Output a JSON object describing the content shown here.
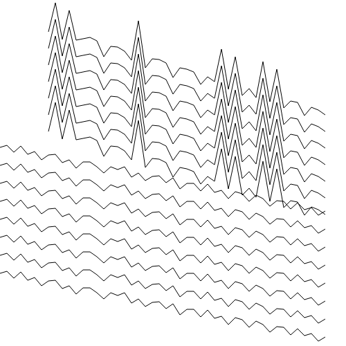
{
  "chart_data": {
    "type": "line",
    "color": "#000000",
    "marker": "none",
    "line_style": "solid",
    "grid": false,
    "tick_labels": false,
    "xlim": [
      0,
      500
    ],
    "ylim": [
      0,
      500
    ],
    "x": [
      0,
      10,
      20,
      30,
      40,
      50,
      60,
      70,
      80,
      90,
      100,
      110,
      120,
      130,
      140,
      150,
      160,
      170,
      180,
      190,
      200,
      210,
      220,
      230,
      240,
      250,
      260,
      270,
      280,
      290,
      300,
      310,
      320,
      330,
      340,
      350,
      360,
      370,
      380,
      390,
      400,
      410,
      420,
      430,
      440,
      450,
      460,
      470
    ],
    "series": [
      {
        "values": [
          null,
          null,
          null,
          null,
          null,
          null,
          null,
          454,
          496,
          443,
          485,
          442,
          444,
          446,
          441,
          418,
          433,
          432,
          426,
          413,
          470,
          402,
          415,
          414,
          409,
          388,
          402,
          400,
          396,
          378,
          389,
          382,
          429,
          371,
          418,
          362,
          372,
          359,
          411,
          353,
          400,
          344,
          354,
          352,
          333,
          345,
          341,
          334
        ]
      },
      {
        "values": [
          null,
          null,
          null,
          null,
          null,
          null,
          null,
          430,
          472,
          419,
          461,
          418,
          420,
          422,
          417,
          394,
          409,
          408,
          402,
          389,
          446,
          378,
          391,
          390,
          385,
          364,
          378,
          376,
          372,
          354,
          365,
          358,
          405,
          347,
          394,
          338,
          348,
          335,
          387,
          329,
          376,
          320,
          330,
          328,
          309,
          321,
          317,
          310
        ]
      },
      {
        "values": [
          null,
          null,
          null,
          null,
          null,
          null,
          null,
          406,
          448,
          395,
          437,
          394,
          396,
          398,
          393,
          370,
          385,
          384,
          378,
          365,
          422,
          354,
          367,
          366,
          361,
          340,
          354,
          352,
          348,
          330,
          341,
          334,
          381,
          323,
          370,
          314,
          324,
          311,
          363,
          305,
          352,
          296,
          306,
          304,
          285,
          297,
          293,
          286
        ]
      },
      {
        "values": [
          null,
          null,
          null,
          null,
          null,
          null,
          null,
          382,
          424,
          371,
          413,
          370,
          372,
          374,
          369,
          346,
          361,
          360,
          354,
          341,
          398,
          330,
          343,
          342,
          337,
          316,
          330,
          328,
          324,
          306,
          317,
          310,
          357,
          299,
          346,
          290,
          300,
          287,
          339,
          281,
          328,
          272,
          282,
          280,
          261,
          273,
          269,
          262
        ]
      },
      {
        "values": [
          null,
          null,
          null,
          null,
          null,
          null,
          null,
          358,
          400,
          347,
          389,
          346,
          348,
          350,
          345,
          322,
          337,
          336,
          330,
          317,
          374,
          306,
          319,
          318,
          313,
          292,
          306,
          304,
          300,
          282,
          293,
          286,
          333,
          275,
          322,
          266,
          276,
          263,
          315,
          257,
          304,
          248,
          258,
          256,
          237,
          249,
          245,
          238
        ]
      },
      {
        "values": [
          null,
          null,
          null,
          null,
          null,
          null,
          null,
          334,
          376,
          323,
          365,
          322,
          324,
          326,
          321,
          298,
          313,
          312,
          306,
          293,
          350,
          282,
          295,
          294,
          289,
          268,
          282,
          280,
          276,
          258,
          269,
          262,
          309,
          251,
          298,
          242,
          252,
          239,
          291,
          233,
          280,
          224,
          234,
          232,
          213,
          225,
          221,
          214
        ]
      },
      {
        "values": [
          null,
          null,
          null,
          null,
          null,
          null,
          null,
          310,
          352,
          299,
          341,
          298,
          300,
          302,
          297,
          274,
          289,
          288,
          282,
          269,
          326,
          258,
          271,
          270,
          265,
          244,
          258,
          256,
          252,
          234,
          245,
          238,
          285,
          227,
          274,
          218,
          228,
          215,
          267,
          209,
          256,
          200,
          210,
          208,
          189,
          201,
          197,
          190
        ]
      },
      {
        "values": [
          287,
          290,
          280,
          289,
          277,
          281,
          269,
          276,
          277,
          265,
          269,
          257,
          266,
          266,
          259,
          250,
          259,
          255,
          259,
          244,
          250,
          239,
          245,
          246,
          236,
          243,
          227,
          235,
          235,
          224,
          234,
          222,
          225,
          213,
          223,
          220,
          209,
          218,
          213,
          202,
          210,
          209,
          198,
          207,
          197,
          200,
          189,
          195
        ]
      },
      {
        "values": [
          261,
          264,
          254,
          263,
          251,
          255,
          243,
          250,
          251,
          239,
          243,
          231,
          240,
          240,
          233,
          224,
          233,
          229,
          233,
          218,
          224,
          213,
          219,
          220,
          210,
          217,
          201,
          209,
          209,
          198,
          208,
          196,
          199,
          187,
          197,
          194,
          183,
          192,
          187,
          176,
          184,
          183,
          172,
          181,
          171,
          174,
          163,
          169
        ]
      },
      {
        "values": [
          235,
          238,
          228,
          237,
          225,
          229,
          217,
          224,
          225,
          213,
          217,
          205,
          214,
          214,
          207,
          198,
          207,
          203,
          207,
          192,
          198,
          187,
          193,
          194,
          184,
          191,
          175,
          183,
          183,
          172,
          182,
          170,
          173,
          161,
          171,
          168,
          157,
          166,
          161,
          150,
          158,
          157,
          146,
          155,
          145,
          148,
          137,
          143
        ]
      },
      {
        "values": [
          209,
          212,
          202,
          211,
          199,
          203,
          191,
          198,
          199,
          187,
          191,
          179,
          188,
          188,
          181,
          172,
          181,
          177,
          181,
          166,
          172,
          161,
          167,
          168,
          158,
          165,
          149,
          157,
          157,
          146,
          156,
          144,
          147,
          135,
          145,
          142,
          131,
          140,
          135,
          124,
          132,
          131,
          120,
          129,
          119,
          122,
          111,
          117
        ]
      },
      {
        "values": [
          183,
          186,
          176,
          185,
          173,
          177,
          165,
          172,
          173,
          161,
          165,
          153,
          162,
          162,
          155,
          146,
          155,
          151,
          155,
          140,
          146,
          135,
          141,
          142,
          132,
          139,
          123,
          131,
          131,
          120,
          130,
          118,
          121,
          109,
          119,
          116,
          105,
          114,
          109,
          98,
          106,
          105,
          94,
          103,
          93,
          96,
          85,
          91
        ]
      },
      {
        "values": [
          157,
          160,
          150,
          159,
          147,
          151,
          139,
          146,
          147,
          135,
          139,
          127,
          136,
          136,
          129,
          120,
          129,
          125,
          129,
          114,
          120,
          109,
          115,
          116,
          106,
          113,
          97,
          105,
          105,
          94,
          104,
          92,
          95,
          83,
          93,
          90,
          79,
          88,
          83,
          72,
          80,
          79,
          68,
          77,
          67,
          70,
          59,
          65
        ]
      },
      {
        "values": [
          131,
          134,
          124,
          133,
          121,
          125,
          113,
          120,
          121,
          109,
          113,
          101,
          110,
          110,
          103,
          94,
          103,
          99,
          103,
          88,
          94,
          83,
          89,
          90,
          80,
          87,
          71,
          79,
          79,
          68,
          78,
          66,
          69,
          57,
          67,
          64,
          53,
          62,
          57,
          46,
          54,
          53,
          42,
          51,
          41,
          44,
          33,
          39
        ]
      },
      {
        "values": [
          105,
          108,
          98,
          107,
          95,
          99,
          87,
          94,
          95,
          83,
          87,
          75,
          84,
          84,
          77,
          68,
          77,
          73,
          77,
          62,
          68,
          57,
          63,
          64,
          54,
          61,
          45,
          53,
          53,
          42,
          52,
          40,
          43,
          31,
          41,
          38,
          27,
          36,
          31,
          20,
          28,
          27,
          16,
          25,
          15,
          18,
          7,
          13
        ]
      }
    ]
  }
}
